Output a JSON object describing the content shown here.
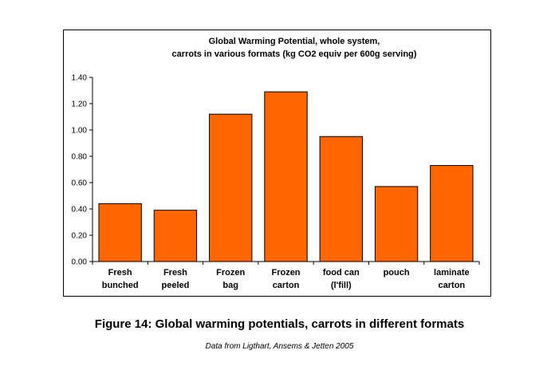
{
  "chart_data": {
    "type": "bar",
    "title_lines": [
      "Global Warming Potential, whole system,",
      "carrots in various formats (kg CO2 equiv per 600g serving)"
    ],
    "categories": [
      [
        "Fresh",
        "bunched"
      ],
      [
        "Fresh",
        "peeled"
      ],
      [
        "Frozen",
        "bag"
      ],
      [
        "Frozen",
        "carton"
      ],
      [
        "food can",
        "(l'fill)"
      ],
      [
        "pouch"
      ],
      [
        "laminate",
        "carton"
      ]
    ],
    "values": [
      0.44,
      0.39,
      1.12,
      1.29,
      0.95,
      0.57,
      0.73
    ],
    "y_ticks": [
      "0.00",
      "0.20",
      "0.40",
      "0.60",
      "0.80",
      "1.00",
      "1.20",
      "1.40"
    ],
    "ylim": [
      0,
      1.4
    ],
    "grid": false,
    "legend": "none",
    "bar_color": "#ff6600",
    "bar_edge_color": "#000000"
  },
  "caption": "Figure 14: Global warming potentials, carrots in different formats",
  "source": "Data from Ligthart, Ansems & Jetten 2005"
}
